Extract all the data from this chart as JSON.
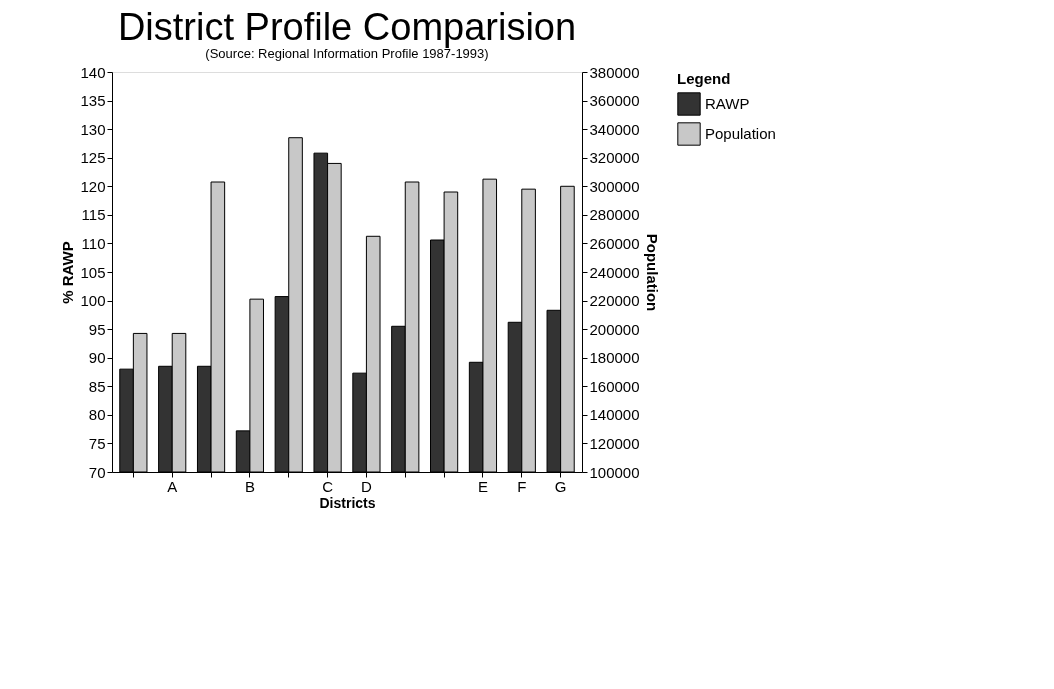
{
  "chart_data": {
    "type": "bar",
    "title": "District Profile Comparision",
    "subtitle": "(Source: Regional Information Profile 1987-1993)",
    "xlabel": "Districts",
    "ylabel": "% RAWP",
    "y2label": "Population",
    "legend_title": "Legend",
    "legend": "right",
    "grid": false,
    "categories": [
      null,
      "A",
      null,
      "B",
      null,
      "C",
      "D",
      null,
      null,
      "E",
      "F",
      "G"
    ],
    "series": [
      {
        "name": "RAWP",
        "color": "#333333",
        "values": [
          88.0,
          88.5,
          88.5,
          77.2,
          100.7,
          125.8,
          87.3,
          95.5,
          110.6,
          89.2,
          96.2,
          98.3
        ]
      },
      {
        "name": "Population",
        "color": "#c8c8c8",
        "axis": "y2",
        "values": [
          197000,
          197000,
          303000,
          221000,
          334000,
          316000,
          265000,
          303000,
          296000,
          305000,
          298000,
          300000
        ]
      }
    ],
    "ylim": [
      70,
      140
    ],
    "yticks": [
      70,
      75,
      80,
      85,
      90,
      95,
      100,
      105,
      110,
      115,
      120,
      125,
      130,
      135,
      140
    ],
    "y2lim": [
      100000,
      380000
    ],
    "y2ticks": [
      100000,
      120000,
      140000,
      160000,
      180000,
      200000,
      220000,
      240000,
      260000,
      280000,
      300000,
      320000,
      340000,
      360000,
      380000
    ]
  }
}
